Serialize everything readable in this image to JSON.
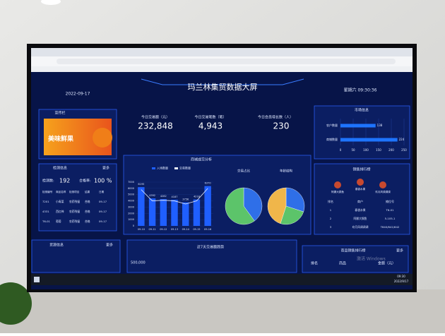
{
  "header": {
    "title": "玛兰林集贸数据大屏",
    "date": "2022-09-17",
    "weekday_time": "星期六 09:30:36"
  },
  "promo": {
    "title": "宣传栏",
    "banner_title": "美味鲜果"
  },
  "kpis": [
    {
      "label": "今日交易额（元）",
      "value": "232,848"
    },
    {
      "label": "今日交易笔数（笔）",
      "value": "4,943"
    },
    {
      "label": "今日会员增长数（人）",
      "value": "230"
    }
  ],
  "market": {
    "type": "hbar",
    "title": "市场信息",
    "categories": [
      "农户数量",
      "商铺数量"
    ],
    "values": [
      138,
      224
    ],
    "color": "#1e74ff",
    "xlim": [
      0,
      250
    ],
    "xticks": [
      0,
      50,
      100,
      150,
      200,
      250
    ]
  },
  "inspection": {
    "title": "检测信息",
    "more": "更多",
    "count_label": "检测数:",
    "count": "192",
    "rate_label": "合格率:",
    "rate": "100 %",
    "columns": [
      "检测编号",
      "商品名称",
      "检测项目",
      "结果",
      "日期"
    ],
    "rows": [
      [
        "7201",
        "小青菜",
        "农药残留",
        "合格",
        "09-17"
      ],
      [
        "4331",
        "西红柿",
        "农药残留",
        "合格",
        "09-17"
      ],
      [
        "T6-01",
        "葡萄",
        "农药残留",
        "合格",
        "09-17"
      ]
    ]
  },
  "trade": {
    "type": "bar_line",
    "title": "商城成交分析",
    "categories": [
      "09-10",
      "09-11",
      "09-12",
      "09-13",
      "09-14",
      "09-15",
      "09-16"
    ],
    "series": [
      {
        "name": "入场数量",
        "color": "#1f5fff",
        "values": [
          6195,
          4392,
          4282,
          4187,
          3756,
          4218,
          6370
        ]
      },
      {
        "name": "交易数量",
        "color": "#e8eefc",
        "values": [
          5800,
          4000,
          4100,
          4000,
          3500,
          4000,
          6000
        ]
      }
    ],
    "ylim": [
      0,
      7000
    ],
    "yticks": [
      0,
      1000,
      2000,
      3000,
      4000,
      5000,
      6000,
      7000
    ]
  },
  "pies": [
    {
      "type": "pie",
      "title": "交易占比",
      "values": [
        40,
        60
      ],
      "colors": [
        "#2f6fe8",
        "#5cc46a"
      ]
    },
    {
      "type": "pie",
      "title": "年龄结构",
      "values": [
        30,
        25,
        45
      ],
      "colors": [
        "#2f6fe8",
        "#5cc46a",
        "#f0b64a"
      ]
    }
  ],
  "ranking": {
    "title": "销售排行榜",
    "podium": [
      "阿娜大锅鱼",
      "春香水果",
      "玖月风调调调"
    ],
    "columns": [
      "排名",
      "商户",
      "摊位号"
    ],
    "rows": [
      [
        "1",
        "春香水果",
        "T6-01"
      ],
      [
        "2",
        "阿娜大锅鱼",
        "5-105-1"
      ],
      [
        "3",
        "玖月风调调调",
        "T640/641/642"
      ]
    ]
  },
  "supply": {
    "title": "货源信息",
    "more": "更多"
  },
  "trend": {
    "title": "近7天交易额趋势",
    "ytick": "500,000"
  },
  "goods": {
    "title": "商品销售排行榜",
    "more": "更多",
    "columns": [
      "排名",
      "商品",
      "金额（元）"
    ]
  },
  "taskbar": {
    "time": "09:30",
    "date": "2022/9/17"
  },
  "watermark": "激活 Windows"
}
